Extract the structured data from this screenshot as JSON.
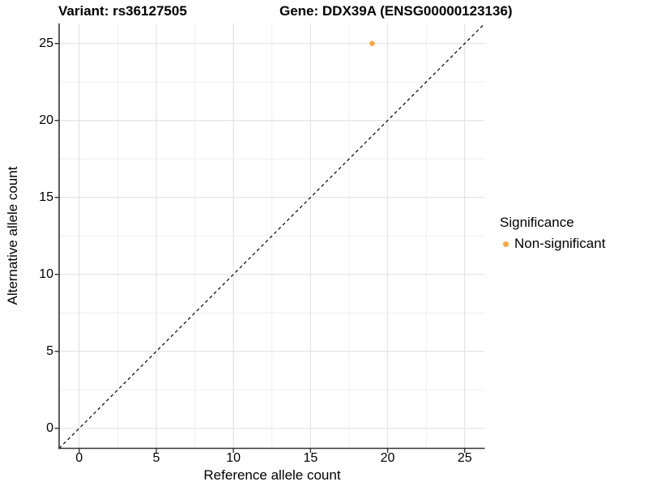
{
  "chart_data": {
    "type": "scatter",
    "title_left": "Variant: rs36127505",
    "title_right": "Gene: DDX39A (ENSG00000123136)",
    "xlabel": "Reference allele count",
    "ylabel": "Alternative allele count",
    "xlim": [
      -1.3,
      26.3
    ],
    "ylim": [
      -1.3,
      26.3
    ],
    "x_ticks": [
      0,
      5,
      10,
      15,
      20,
      25
    ],
    "y_ticks": [
      0,
      5,
      10,
      15,
      20,
      25
    ],
    "x_minor_ticks": [
      2.5,
      7.5,
      12.5,
      17.5,
      22.5
    ],
    "y_minor_ticks": [
      2.5,
      7.5,
      12.5,
      17.5,
      22.5
    ],
    "grid": "major and minor gridlines on white panel",
    "reference_line": {
      "kind": "identity y=x",
      "style": "dashed",
      "color": "#000000"
    },
    "points": [
      {
        "x": 19,
        "y": 25,
        "significance": "Non-significant"
      }
    ],
    "legend": {
      "title": "Significance",
      "position": "right",
      "items": [
        {
          "label": "Non-significant",
          "color": "#FAA63E"
        }
      ]
    },
    "colors": {
      "point": "#FAA63E",
      "grid_major": "#E3E3E3",
      "grid_minor": "#F0F0F0",
      "axis_line": "#333333",
      "text": "#000000",
      "background": "#FFFFFF"
    }
  }
}
